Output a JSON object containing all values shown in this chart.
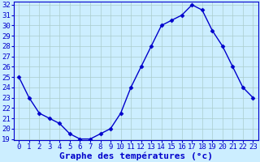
{
  "x": [
    0,
    1,
    2,
    3,
    4,
    5,
    6,
    7,
    8,
    9,
    10,
    11,
    12,
    13,
    14,
    15,
    16,
    17,
    18,
    19,
    20,
    21,
    22,
    23
  ],
  "y": [
    25.0,
    23.0,
    21.5,
    21.0,
    20.5,
    19.5,
    19.0,
    19.0,
    19.5,
    20.0,
    21.5,
    24.0,
    26.0,
    28.0,
    30.0,
    30.5,
    31.0,
    32.0,
    31.5,
    29.5,
    28.0,
    26.0,
    24.0,
    23.0
  ],
  "xlabel": "Graphe des températures (°c)",
  "ylim": [
    19,
    32
  ],
  "xlim_min": -0.5,
  "xlim_max": 23.5,
  "yticks": [
    19,
    20,
    21,
    22,
    23,
    24,
    25,
    26,
    27,
    28,
    29,
    30,
    31,
    32
  ],
  "xticks": [
    0,
    1,
    2,
    3,
    4,
    5,
    6,
    7,
    8,
    9,
    10,
    11,
    12,
    13,
    14,
    15,
    16,
    17,
    18,
    19,
    20,
    21,
    22,
    23
  ],
  "line_color": "#0000cc",
  "marker": "D",
  "marker_size": 2.5,
  "bg_color": "#cceeff",
  "grid_color": "#aacccc",
  "axes_color": "#0000cc",
  "xlabel_fontsize": 8,
  "tick_fontsize": 6.5,
  "linewidth": 1.0
}
